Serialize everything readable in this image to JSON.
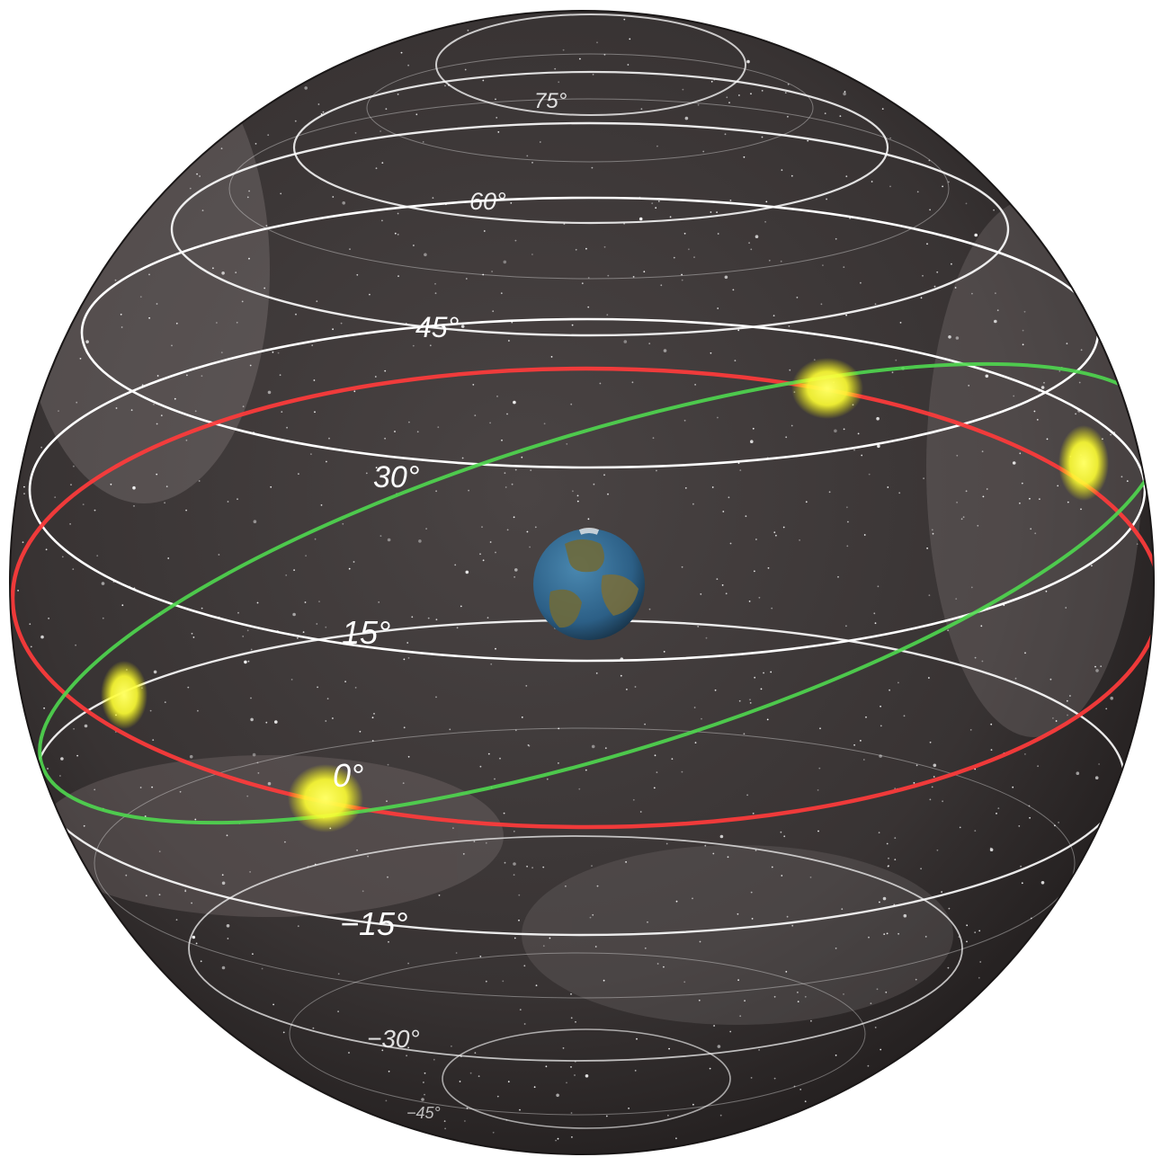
{
  "diagram": {
    "latitude_labels": {
      "lat_75": "75°",
      "lat_60": "60°",
      "lat_45": "45°",
      "lat_30": "30°",
      "lat_15": "15°",
      "lat_0": "0°",
      "lat_m15": "−15°",
      "lat_m30": "−30°",
      "lat_m45": "−45°"
    },
    "colors": {
      "sphere_background": "#3a3535",
      "grid_lines": "#ffffff",
      "celestial_equator": "#ff3b3b",
      "ecliptic": "#4fd84f",
      "sun": "#ffff33",
      "earth_ocean": "#2c5f86",
      "earth_land": "#6e6a3c"
    },
    "icons": {
      "center_body": "earth-icon",
      "sun_markers": "sun-icon"
    }
  }
}
